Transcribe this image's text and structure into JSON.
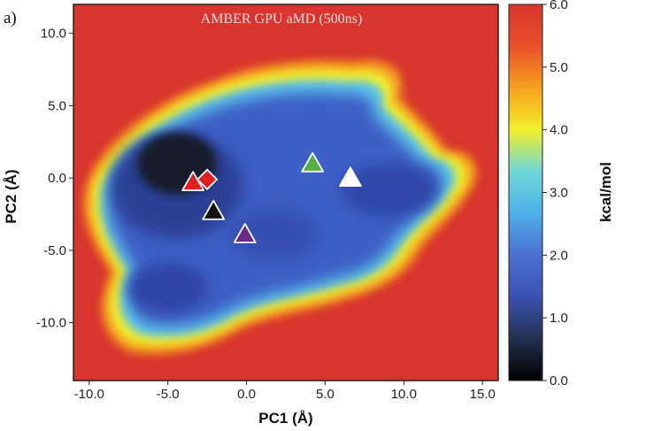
{
  "panel_label": "a)",
  "chart_data": {
    "type": "heatmap",
    "title": "AMBER GPU aMD (500ns)",
    "xlabel": "PC1 (Å)",
    "ylabel": "PC2 (Å)",
    "xlim": [
      -11,
      16
    ],
    "ylim": [
      -14,
      12
    ],
    "x_ticks": [
      "-10.0",
      "-5.0",
      "0.0",
      "5.0",
      "10.0",
      "15.0"
    ],
    "y_ticks": [
      "10.0",
      "5.0",
      "0.0",
      "-5.0",
      "-10.0"
    ],
    "colorbar": {
      "label": "kcal/mol",
      "range": [
        0,
        6
      ],
      "ticks": [
        "6.0",
        "5.0",
        "4.0",
        "3.0",
        "2.0",
        "1.0",
        "0.0"
      ],
      "colors": [
        "#000000",
        "#22304f",
        "#3b52b0",
        "#4a6fd0",
        "#4fb0e8",
        "#6fd8d8",
        "#f2f02a",
        "#f7a21e",
        "#e8502a",
        "#d8352e"
      ]
    },
    "background_value": 6.0,
    "markers": [
      {
        "shape": "triangle",
        "color": "#e02020",
        "x": -3.4,
        "y": -0.3
      },
      {
        "shape": "diamond",
        "color": "#e02020",
        "x": -2.5,
        "y": -0.1
      },
      {
        "shape": "triangle",
        "color": "#111111",
        "x": -2.1,
        "y": -2.3
      },
      {
        "shape": "triangle",
        "color": "#6a2a8a",
        "x": -0.1,
        "y": -3.9
      },
      {
        "shape": "triangle",
        "color": "#55b040",
        "x": 4.2,
        "y": 1.0
      },
      {
        "shape": "triangle",
        "color": "#ffffff",
        "x": 6.6,
        "y": 0.0
      }
    ]
  }
}
